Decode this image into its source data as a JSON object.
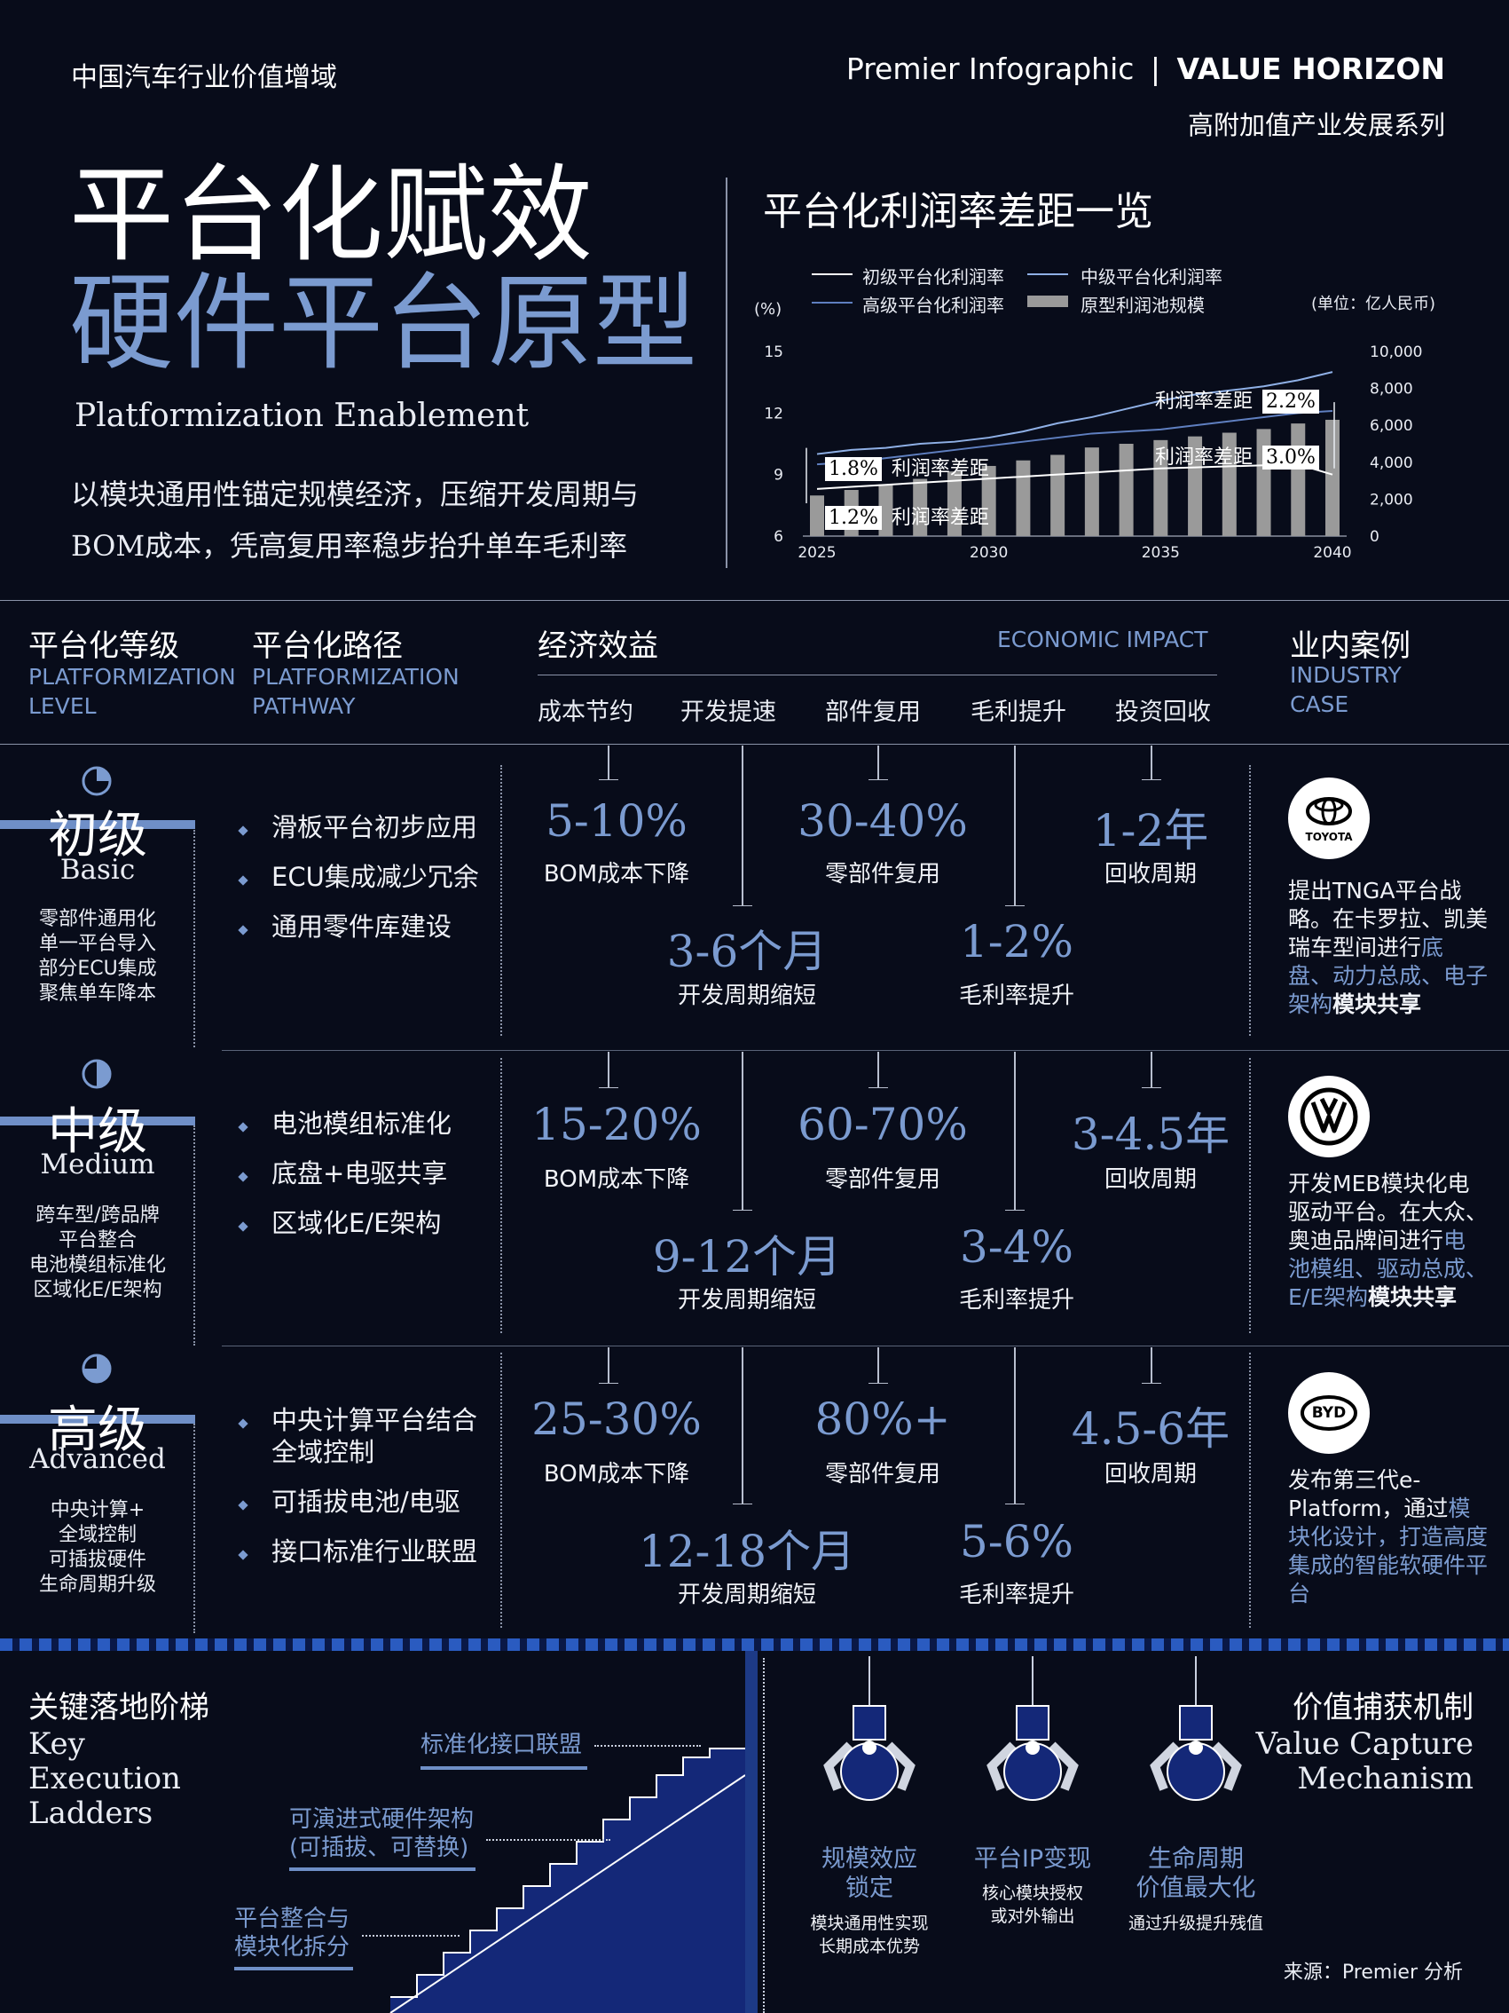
{
  "header": {
    "left": "中国汽车行业价值增域",
    "brand_prefix": "Premier Infographic",
    "brand_sep": "|",
    "brand_name": "VALUE HORIZON",
    "series": "高附加值产业发展系列"
  },
  "hero": {
    "title_line1": "平台化赋效",
    "title_line2": "硬件平台原型",
    "title_en": "Platformization Enablement",
    "subtitle_line1": "以模块通用性锚定规模经济，压缩开发周期与",
    "subtitle_line2": "BOM成本，凭高复用率稳步抬升单车毛利率"
  },
  "chart": {
    "title": "平台化利润率差距一览",
    "y_left_unit": "(%)",
    "y_right_unit": "(单位：亿人民币)",
    "legend": [
      "初级平台化利润率",
      "中级平台化利润率",
      "高级平台化利润率",
      "原型利润池规模"
    ],
    "annotations": [
      {
        "label": "利润率差距",
        "value": "2.2%"
      },
      {
        "label": "利润率差距",
        "value": "3.0%"
      },
      {
        "label": "利润率差距",
        "value": "1.8%"
      },
      {
        "label": "利润率差距",
        "value": "1.2%"
      }
    ],
    "colors": {
      "basic": "#ffffff",
      "medium": "#8fb0e6",
      "advanced": "#5f7fc0",
      "bars": "#9a9a9a"
    }
  },
  "chart_data": {
    "type": "line",
    "x": [
      2025,
      2026,
      2027,
      2028,
      2029,
      2030,
      2031,
      2032,
      2033,
      2034,
      2035,
      2036,
      2037,
      2038,
      2039,
      2040
    ],
    "x_ticks": [
      "2025",
      "2030",
      "2035",
      "2040"
    ],
    "y_left_ticks": [
      "6",
      "9",
      "12",
      "15"
    ],
    "y_right_ticks": [
      "0",
      "2,000",
      "4,000",
      "6,000",
      "8,000",
      "10,000"
    ],
    "ylim_left": [
      6,
      15
    ],
    "ylim_right": [
      0,
      10000
    ],
    "series": [
      {
        "name": "初级平台化利润率",
        "axis": "left",
        "values": [
          8.3,
          8.4,
          8.5,
          8.6,
          8.7,
          8.8,
          8.9,
          9.0,
          9.1,
          9.2,
          9.3,
          9.35,
          9.4,
          9.45,
          9.5,
          9.0
        ]
      },
      {
        "name": "中级平台化利润率",
        "axis": "left",
        "values": [
          10.0,
          10.2,
          10.3,
          10.5,
          10.6,
          10.8,
          11.1,
          11.5,
          11.8,
          12.2,
          12.6,
          12.9,
          13.1,
          13.3,
          13.6,
          14.0
        ]
      },
      {
        "name": "高级平台化利润率",
        "axis": "left",
        "values": [
          9.5,
          9.6,
          9.8,
          10.0,
          10.2,
          10.4,
          10.6,
          10.8,
          11.0,
          11.1,
          11.2,
          11.4,
          11.6,
          11.8,
          12.0,
          12.1
        ]
      },
      {
        "name": "原型利润池规模",
        "type": "bar",
        "axis": "right",
        "values": [
          2200,
          2500,
          2800,
          3100,
          3500,
          3800,
          4100,
          4400,
          4800,
          5000,
          5200,
          5400,
          5600,
          5800,
          6100,
          6300
        ]
      }
    ],
    "legend": "top"
  },
  "table": {
    "headers": {
      "level_cn": "平台化等级",
      "level_en1": "PLATFORMIZATION",
      "level_en2": "LEVEL",
      "path_cn": "平台化路径",
      "path_en1": "PLATFORMIZATION",
      "path_en2": "PATHWAY",
      "econ_cn": "经济效益",
      "econ_en": "ECONOMIC IMPACT",
      "case_cn": "业内案例",
      "case_en1": "INDUSTRY",
      "case_en2": "CASE"
    },
    "sub_headers": [
      "成本节约",
      "开发提速",
      "部件复用",
      "毛利提升",
      "投资回收"
    ],
    "rows": [
      {
        "level_cn": "初级",
        "level_en": "Basic",
        "desc": [
          "零部件通用化",
          "单一平台导入",
          "部分ECU集成",
          "聚焦单车降本"
        ],
        "paths": [
          "滑板平台初步应用",
          "ECU集成减少冗余",
          "通用零件库建设"
        ],
        "bom": "5-10%",
        "bom_cap": "BOM成本下降",
        "reuse": "30-40%",
        "reuse_cap": "零部件复用",
        "payback": "1-2年",
        "payback_cap": "回收周期",
        "dev": "3-6个月",
        "dev_cap": "开发周期缩短",
        "margin": "1-2%",
        "margin_cap": "毛利率提升",
        "logo_text": "TOYOTA",
        "case": {
          "t1": "提出TNGA平台战略。在卡罗拉、凯美瑞车型间进行",
          "h": "底盘、动力总成、电子架构",
          "b": "模块共享"
        }
      },
      {
        "level_cn": "中级",
        "level_en": "Medium",
        "desc": [
          "跨车型/跨品牌",
          "平台整合",
          "电池模组标准化",
          "区域化E/E架构"
        ],
        "paths": [
          "电池模组标准化",
          "底盘+电驱共享",
          "区域化E/E架构"
        ],
        "bom": "15-20%",
        "bom_cap": "BOM成本下降",
        "reuse": "60-70%",
        "reuse_cap": "零部件复用",
        "payback": "3-4.5年",
        "payback_cap": "回收周期",
        "dev": "9-12个月",
        "dev_cap": "开发周期缩短",
        "margin": "3-4%",
        "margin_cap": "毛利率提升",
        "logo_text": "VW",
        "case": {
          "t1": "开发MEB模块化电驱动平台。在大众、奥迪品牌间进行",
          "h": "电池模组、驱动总成、E/E架构",
          "b": "模块共享"
        }
      },
      {
        "level_cn": "高级",
        "level_en": "Advanced",
        "desc": [
          "中央计算+",
          "全域控制",
          "可插拔硬件",
          "生命周期升级"
        ],
        "paths": [
          "中央计算平台结合全域控制",
          "可插拔电池/电驱",
          "接口标准行业联盟"
        ],
        "bom": "25-30%",
        "bom_cap": "BOM成本下降",
        "reuse": "80%+",
        "reuse_cap": "零部件复用",
        "payback": "4.5-6年",
        "payback_cap": "回收周期",
        "dev": "12-18个月",
        "dev_cap": "开发周期缩短",
        "margin": "5-6%",
        "margin_cap": "毛利率提升",
        "logo_text": "BYD",
        "case": {
          "t1": "发布第三代e-Platform，通过",
          "h": "模块化设计，打造高度集成的智能软硬件平台",
          "b": ""
        }
      }
    ]
  },
  "ladder": {
    "title": "关键落地阶梯",
    "en_lines": [
      "Key",
      "Execution",
      "Ladders"
    ],
    "steps": [
      {
        "line1": "标准化接口联盟",
        "line2": ""
      },
      {
        "line1": "可演进式硬件架构",
        "line2": "(可插拔、可替换)"
      },
      {
        "line1": "平台整合与",
        "line2": "模块化拆分"
      }
    ]
  },
  "mechanism": {
    "title": "价值捕获机制",
    "en_lines": [
      "Value Capture",
      "Mechanism"
    ],
    "items": [
      {
        "title1": "规模效应",
        "title2": "锁定",
        "desc1": "模块通用性实现",
        "desc2": "长期成本优势"
      },
      {
        "title1": "平台IP变现",
        "title2": "",
        "desc1": "核心模块授权",
        "desc2": "或对外输出"
      },
      {
        "title1": "生命周期",
        "title2": "价值最大化",
        "desc1": "通过升级提升残值",
        "desc2": ""
      }
    ]
  },
  "source": "来源：Premier 分析"
}
